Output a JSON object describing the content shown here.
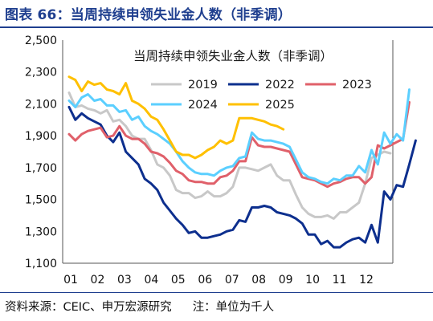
{
  "figure_title": "图表 66：当周持续申领失业金人数（非季调）",
  "source_note": {
    "source": "资料来源：CEIC、申万宏源研究",
    "unit": "注：单位为千人"
  },
  "chart_data": {
    "type": "line",
    "title": "当周持续申领失业金人数（非季调）",
    "xlabel": "",
    "ylabel": "",
    "x_tick_labels": [
      "01",
      "02",
      "03",
      "04",
      "05",
      "06",
      "07",
      "08",
      "09",
      "10",
      "11",
      "12"
    ],
    "y_tick_labels": [
      "1,100",
      "1,300",
      "1,500",
      "1,700",
      "1,900",
      "2,100",
      "2,300",
      "2,500"
    ],
    "ylim": [
      1100,
      2500
    ],
    "xlim": [
      1,
      52
    ],
    "x_unit": "week of year",
    "grid": false,
    "legend_placement": "top-right",
    "series": [
      {
        "name": "2019",
        "color": "#c8c8c8",
        "values": [
          2170,
          2080,
          2090,
          2070,
          2060,
          2040,
          2060,
          1990,
          2000,
          1960,
          1900,
          1880,
          1880,
          1810,
          1720,
          1700,
          1650,
          1560,
          1540,
          1540,
          1510,
          1520,
          1550,
          1520,
          1520,
          1540,
          1580,
          1700,
          1700,
          1690,
          1680,
          1700,
          1720,
          1650,
          1620,
          1620,
          1530,
          1450,
          1410,
          1390,
          1390,
          1400,
          1380,
          1420,
          1420,
          1450,
          1480,
          1600,
          1760,
          1780,
          1800,
          1790
        ]
      },
      {
        "name": "2022",
        "color": "#0d2f8e",
        "values": [
          2080,
          2000,
          2040,
          2010,
          1990,
          1970,
          1900,
          1860,
          1920,
          1800,
          1760,
          1720,
          1630,
          1600,
          1560,
          1480,
          1430,
          1380,
          1340,
          1290,
          1300,
          1260,
          1260,
          1270,
          1280,
          1300,
          1310,
          1370,
          1360,
          1450,
          1450,
          1460,
          1450,
          1420,
          1410,
          1400,
          1380,
          1350,
          1280,
          1280,
          1220,
          1240,
          1200,
          1200,
          1230,
          1250,
          1260,
          1230,
          1340,
          1230,
          1550,
          1500,
          1590,
          1580,
          1720,
          1870
        ]
      },
      {
        "name": "2023",
        "color": "#e0606a",
        "values": [
          1910,
          1870,
          1910,
          1930,
          1940,
          1950,
          1890,
          1900,
          1960,
          1900,
          1880,
          1880,
          1850,
          1800,
          1790,
          1770,
          1730,
          1680,
          1660,
          1620,
          1610,
          1610,
          1600,
          1600,
          1640,
          1650,
          1680,
          1740,
          1740,
          1890,
          1840,
          1830,
          1830,
          1820,
          1810,
          1800,
          1720,
          1640,
          1630,
          1620,
          1600,
          1580,
          1600,
          1610,
          1630,
          1640,
          1640,
          1600,
          1640,
          1840,
          1820,
          1840,
          1860,
          1880,
          2110
        ]
      },
      {
        "name": "2024",
        "color": "#5bcfff",
        "values": [
          2120,
          2080,
          2140,
          2160,
          2120,
          2130,
          2090,
          2090,
          2050,
          2060,
          2000,
          2020,
          1960,
          1930,
          1910,
          1880,
          1850,
          1800,
          1740,
          1700,
          1670,
          1660,
          1660,
          1650,
          1680,
          1700,
          1710,
          1760,
          1770,
          1920,
          1880,
          1870,
          1870,
          1860,
          1850,
          1830,
          1750,
          1670,
          1640,
          1630,
          1610,
          1600,
          1630,
          1620,
          1650,
          1650,
          1710,
          1670,
          1810,
          1720,
          1920,
          1850,
          1910,
          1870,
          2190
        ]
      },
      {
        "name": "2025",
        "color": "#ffc000",
        "values": [
          2270,
          2250,
          2180,
          2240,
          2220,
          2230,
          2190,
          2180,
          2160,
          2230,
          2120,
          2100,
          2070,
          2020,
          2000,
          1940,
          1870,
          1800,
          1780,
          1780,
          1760,
          1780,
          1810,
          1830,
          1870,
          1850,
          1870,
          2010,
          2010,
          2010,
          2000,
          1990,
          1970,
          1960,
          1940
        ]
      }
    ]
  }
}
